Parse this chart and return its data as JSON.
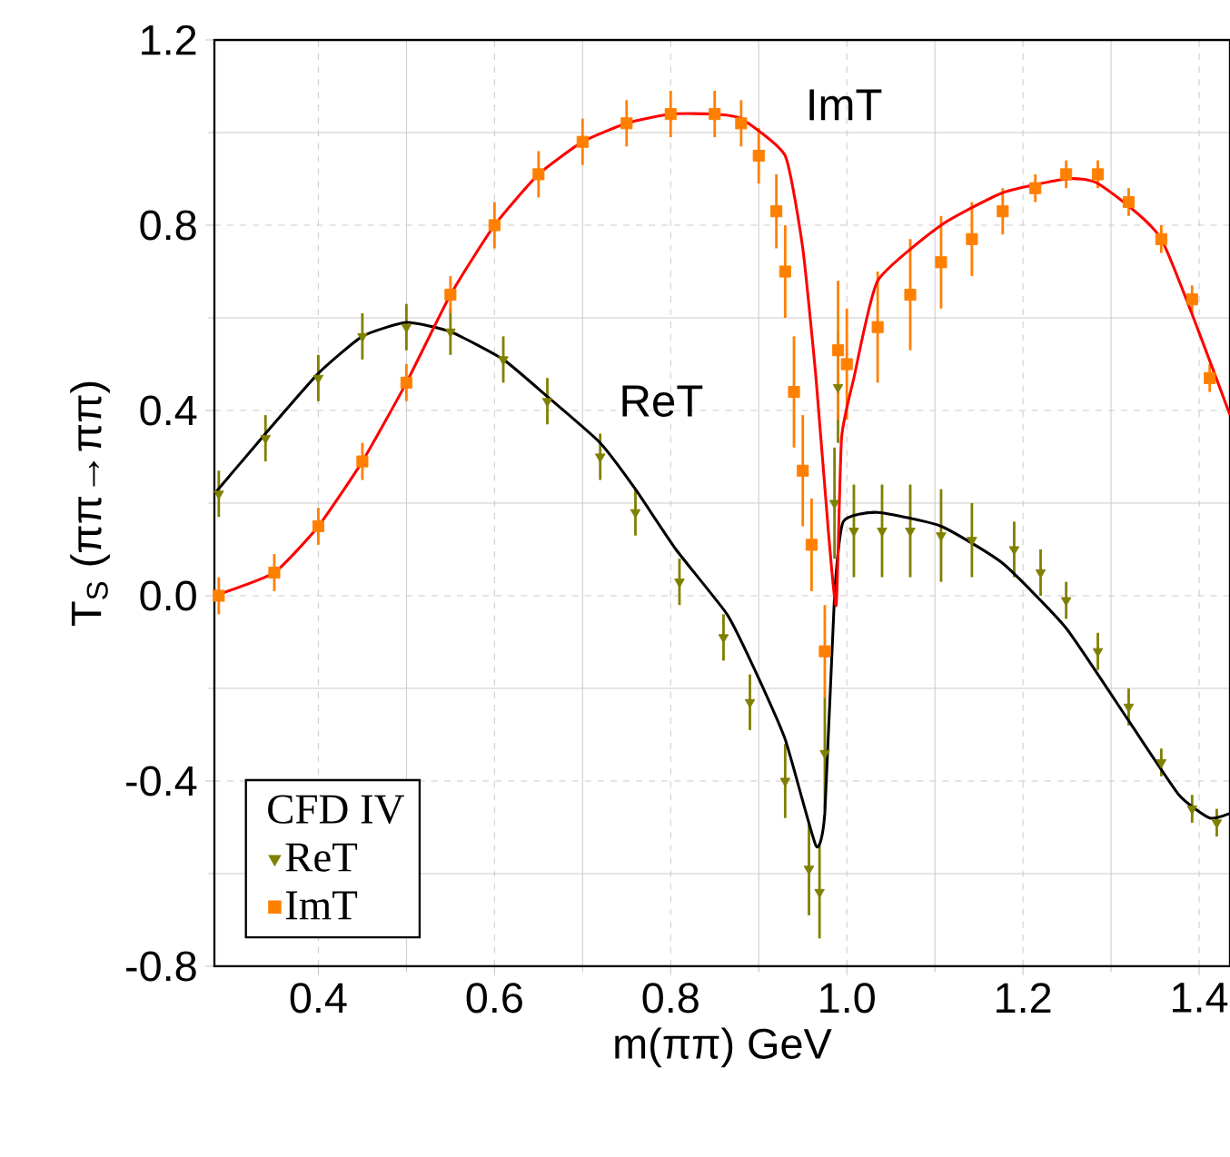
{
  "chart_data": {
    "type": "scatter",
    "xlabel": "m(ππ) GeV",
    "ylabel": "T$_{S}$ (ππ→ππ)",
    "xlim": [
      0.282,
      1.435
    ],
    "ylim": [
      -0.8,
      1.2
    ],
    "xticks": [
      0.4,
      0.6,
      0.8,
      {
        "value": 1.0,
        "label": "1.0"
      },
      1.2,
      1.4
    ],
    "yticks": [
      -0.8,
      -0.4,
      {
        "value": 0.0,
        "label": "0.0"
      },
      0.4,
      0.8,
      1.2
    ],
    "grid": true,
    "legend": "bottom left",
    "legend_title": "CFD IV",
    "annotations": [
      "ImT",
      "ReT"
    ],
    "series": [
      {
        "name": "ReT",
        "color": "#808000",
        "marker": "triangle",
        "x": [
          0.287,
          0.34,
          0.4,
          0.45,
          0.5,
          0.55,
          0.61,
          0.66,
          0.72,
          0.76,
          0.81,
          0.86,
          0.89,
          0.93,
          0.957,
          0.969,
          0.975,
          0.986,
          0.99,
          1.008,
          1.04,
          1.072,
          1.107,
          1.142,
          1.19,
          1.22,
          1.249,
          1.285,
          1.32,
          1.357,
          1.392,
          1.42
        ],
        "values": [
          0.22,
          0.34,
          0.47,
          0.56,
          0.58,
          0.57,
          0.51,
          0.42,
          0.3,
          0.18,
          0.03,
          -0.09,
          -0.23,
          -0.4,
          -0.59,
          -0.64,
          -0.34,
          0.2,
          0.45,
          0.14,
          0.14,
          0.14,
          0.13,
          0.12,
          0.1,
          0.05,
          -0.01,
          -0.12,
          -0.24,
          -0.36,
          -0.46,
          -0.49
        ],
        "errors": [
          0.05,
          0.05,
          0.05,
          0.05,
          0.05,
          0.05,
          0.05,
          0.05,
          0.05,
          0.05,
          0.05,
          0.05,
          0.06,
          0.08,
          0.1,
          0.1,
          0.12,
          0.12,
          0.12,
          0.1,
          0.1,
          0.1,
          0.1,
          0.08,
          0.06,
          0.05,
          0.04,
          0.04,
          0.04,
          0.03,
          0.03,
          0.03
        ]
      },
      {
        "name": "ImT",
        "color": "#ff8000",
        "marker": "square",
        "x": [
          0.287,
          0.35,
          0.4,
          0.45,
          0.5,
          0.55,
          0.6,
          0.65,
          0.7,
          0.75,
          0.8,
          0.85,
          0.88,
          0.9,
          0.92,
          0.93,
          0.94,
          0.95,
          0.96,
          0.975,
          0.99,
          1.0,
          1.035,
          1.072,
          1.107,
          1.142,
          1.177,
          1.214,
          1.249,
          1.285,
          1.32,
          1.357,
          1.392,
          1.412
        ],
        "values": [
          0.0,
          0.05,
          0.15,
          0.29,
          0.46,
          0.65,
          0.8,
          0.91,
          0.98,
          1.02,
          1.04,
          1.04,
          1.02,
          0.95,
          0.83,
          0.7,
          0.44,
          0.27,
          0.11,
          -0.12,
          0.53,
          0.5,
          0.58,
          0.65,
          0.72,
          0.77,
          0.83,
          0.88,
          0.91,
          0.91,
          0.85,
          0.77,
          0.64,
          0.47
        ],
        "errors": [
          0.04,
          0.04,
          0.04,
          0.04,
          0.04,
          0.04,
          0.05,
          0.05,
          0.05,
          0.05,
          0.05,
          0.05,
          0.05,
          0.06,
          0.08,
          0.1,
          0.12,
          0.12,
          0.1,
          0.1,
          0.15,
          0.12,
          0.12,
          0.12,
          0.1,
          0.08,
          0.05,
          0.03,
          0.03,
          0.03,
          0.03,
          0.03,
          0.03,
          0.03
        ]
      },
      {
        "type": "line",
        "color": "#000000",
        "x": [
          0.282,
          0.34,
          0.4,
          0.45,
          0.5,
          0.55,
          0.61,
          0.66,
          0.72,
          0.76,
          0.806,
          0.864,
          0.893,
          0.93,
          0.965,
          0.975,
          0.986,
          0.996,
          1.035,
          1.107,
          1.177,
          1.249,
          1.32,
          1.377,
          1.412,
          1.435
        ],
        "values": [
          0.22,
          0.35,
          0.48,
          0.56,
          0.59,
          0.57,
          0.51,
          0.43,
          0.33,
          0.23,
          0.1,
          -0.04,
          -0.15,
          -0.31,
          -0.54,
          -0.47,
          0.0,
          0.16,
          0.18,
          0.15,
          0.07,
          -0.07,
          -0.27,
          -0.43,
          -0.48,
          -0.47
        ]
      },
      {
        "type": "line",
        "color": "#ff0000",
        "x": [
          0.282,
          0.35,
          0.4,
          0.45,
          0.5,
          0.55,
          0.6,
          0.65,
          0.7,
          0.75,
          0.8,
          0.85,
          0.88,
          0.93,
          0.95,
          0.965,
          0.979,
          0.988,
          0.994,
          1.008,
          1.035,
          1.107,
          1.177,
          1.249,
          1.285,
          1.357,
          1.435
        ],
        "values": [
          0.0,
          0.05,
          0.15,
          0.29,
          0.46,
          0.65,
          0.8,
          0.91,
          0.98,
          1.02,
          1.04,
          1.04,
          1.03,
          0.95,
          0.75,
          0.47,
          0.14,
          -0.02,
          0.34,
          0.47,
          0.68,
          0.8,
          0.87,
          0.9,
          0.89,
          0.77,
          0.39
        ]
      }
    ]
  }
}
